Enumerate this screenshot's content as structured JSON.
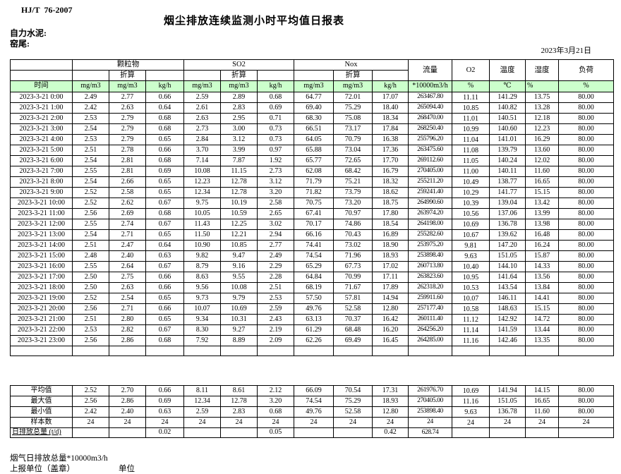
{
  "meta": {
    "standard": "HJ/T  76-2007",
    "title": "烟尘排放连续监测小时平均值日报表",
    "company": "自力水泥:",
    "location": "窑尾:",
    "date": "2023年3月21日"
  },
  "table": {
    "time_label": "时间",
    "converted_label": "折算",
    "groups": {
      "pm": "颗粒物",
      "so2": "SO2",
      "nox": "Nox",
      "flow": "流量",
      "o2": "O2",
      "temp": "温度",
      "humidity": "湿度",
      "load": "负荷"
    },
    "units": [
      "mg/m3",
      "mg/m3",
      "kg/h",
      "mg/m3",
      "mg/m3",
      "kg/h",
      "mg/m3",
      "mg/m3",
      "kg/h",
      "*10000m3/h",
      "%",
      "℃",
      "%",
      "%"
    ],
    "rows": [
      {
        "time": "2023-3-21 0:00",
        "values": [
          "2.49",
          "2.77",
          "0.66",
          "2.59",
          "2.89",
          "0.68",
          "64.77",
          "72.01",
          "17.07",
          "263467.80",
          "11.11",
          "141.29",
          "13.75",
          "80.00"
        ]
      },
      {
        "time": "2023-3-21 1:00",
        "values": [
          "2.42",
          "2.63",
          "0.64",
          "2.61",
          "2.83",
          "0.69",
          "69.40",
          "75.29",
          "18.40",
          "265094.40",
          "10.85",
          "140.82",
          "13.28",
          "80.00"
        ]
      },
      {
        "time": "2023-3-21 2:00",
        "values": [
          "2.53",
          "2.79",
          "0.68",
          "2.63",
          "2.95",
          "0.71",
          "68.30",
          "75.08",
          "18.34",
          "268470.00",
          "11.01",
          "140.51",
          "12.18",
          "80.00"
        ]
      },
      {
        "time": "2023-3-21 3:00",
        "values": [
          "2.54",
          "2.79",
          "0.68",
          "2.73",
          "3.00",
          "0.73",
          "66.51",
          "73.17",
          "17.84",
          "268250.40",
          "10.99",
          "140.60",
          "12.23",
          "80.00"
        ]
      },
      {
        "time": "2023-3-21 4:00",
        "values": [
          "2.53",
          "2.79",
          "0.65",
          "2.84",
          "3.12",
          "0.73",
          "64.05",
          "70.79",
          "16.38",
          "255796.20",
          "11.04",
          "141.01",
          "16.29",
          "80.00"
        ]
      },
      {
        "time": "2023-3-21 5:00",
        "values": [
          "2.51",
          "2.78",
          "0.66",
          "3.70",
          "3.99",
          "0.97",
          "65.88",
          "73.04",
          "17.36",
          "263475.60",
          "11.08",
          "139.79",
          "13.60",
          "80.00"
        ]
      },
      {
        "time": "2023-3-21 6:00",
        "values": [
          "2.54",
          "2.81",
          "0.68",
          "7.14",
          "7.87",
          "1.92",
          "65.77",
          "72.65",
          "17.70",
          "269112.60",
          "11.05",
          "140.24",
          "12.02",
          "80.00"
        ]
      },
      {
        "time": "2023-3-21 7:00",
        "values": [
          "2.55",
          "2.81",
          "0.69",
          "10.08",
          "11.15",
          "2.73",
          "62.08",
          "68.42",
          "16.79",
          "270405.00",
          "11.00",
          "140.11",
          "11.60",
          "80.00"
        ]
      },
      {
        "time": "2023-3-21 8:00",
        "values": [
          "2.54",
          "2.66",
          "0.65",
          "12.23",
          "12.78",
          "3.12",
          "71.79",
          "75.21",
          "18.32",
          "255211.20",
          "10.49",
          "138.77",
          "16.65",
          "80.00"
        ]
      },
      {
        "time": "2023-3-21 9:00",
        "values": [
          "2.52",
          "2.58",
          "0.65",
          "12.34",
          "12.78",
          "3.20",
          "71.82",
          "73.79",
          "18.62",
          "259241.40",
          "10.29",
          "141.77",
          "15.15",
          "80.00"
        ]
      },
      {
        "time": "2023-3-21 10:00",
        "values": [
          "2.52",
          "2.62",
          "0.67",
          "9.75",
          "10.19",
          "2.58",
          "70.75",
          "73.20",
          "18.75",
          "264990.60",
          "10.39",
          "139.04",
          "13.42",
          "80.00"
        ]
      },
      {
        "time": "2023-3-21 11:00",
        "values": [
          "2.56",
          "2.69",
          "0.68",
          "10.05",
          "10.59",
          "2.65",
          "67.41",
          "70.97",
          "17.80",
          "263974.20",
          "10.56",
          "137.06",
          "13.99",
          "80.00"
        ]
      },
      {
        "time": "2023-3-21 12:00",
        "values": [
          "2.55",
          "2.74",
          "0.67",
          "11.43",
          "12.25",
          "3.02",
          "70.17",
          "74.86",
          "18.54",
          "264198.00",
          "10.69",
          "136.78",
          "13.98",
          "80.00"
        ]
      },
      {
        "time": "2023-3-21 13:00",
        "values": [
          "2.54",
          "2.71",
          "0.65",
          "11.50",
          "12.21",
          "2.94",
          "66.16",
          "70.43",
          "16.89",
          "255282.60",
          "10.67",
          "139.62",
          "16.48",
          "80.00"
        ]
      },
      {
        "time": "2023-3-21 14:00",
        "values": [
          "2.51",
          "2.47",
          "0.64",
          "10.90",
          "10.85",
          "2.77",
          "74.41",
          "73.02",
          "18.90",
          "253975.20",
          "9.81",
          "147.20",
          "16.24",
          "80.00"
        ]
      },
      {
        "time": "2023-3-21 15:00",
        "values": [
          "2.48",
          "2.40",
          "0.63",
          "9.82",
          "9.47",
          "2.49",
          "74.54",
          "71.96",
          "18.93",
          "253898.40",
          "9.63",
          "151.05",
          "15.87",
          "80.00"
        ]
      },
      {
        "time": "2023-3-21 16:00",
        "values": [
          "2.55",
          "2.64",
          "0.67",
          "8.79",
          "9.16",
          "2.29",
          "65.29",
          "67.73",
          "17.02",
          "260713.80",
          "10.40",
          "144.10",
          "14.33",
          "80.00"
        ]
      },
      {
        "time": "2023-3-21 17:00",
        "values": [
          "2.50",
          "2.75",
          "0.66",
          "8.63",
          "9.55",
          "2.28",
          "64.84",
          "70.99",
          "17.11",
          "263823.60",
          "10.95",
          "141.64",
          "13.56",
          "80.00"
        ]
      },
      {
        "time": "2023-3-21 18:00",
        "values": [
          "2.50",
          "2.63",
          "0.66",
          "9.56",
          "10.08",
          "2.51",
          "68.19",
          "71.67",
          "17.89",
          "262318.20",
          "10.53",
          "143.54",
          "13.84",
          "80.00"
        ]
      },
      {
        "time": "2023-3-21 19:00",
        "values": [
          "2.52",
          "2.54",
          "0.65",
          "9.73",
          "9.79",
          "2.53",
          "57.50",
          "57.81",
          "14.94",
          "259911.60",
          "10.07",
          "146.11",
          "14.41",
          "80.00"
        ]
      },
      {
        "time": "2023-3-21 20:00",
        "values": [
          "2.56",
          "2.71",
          "0.66",
          "10.07",
          "10.69",
          "2.59",
          "49.76",
          "52.58",
          "12.80",
          "257177.40",
          "10.58",
          "148.63",
          "15.15",
          "80.00"
        ]
      },
      {
        "time": "2023-3-21 21:00",
        "values": [
          "2.51",
          "2.80",
          "0.65",
          "9.34",
          "10.31",
          "2.43",
          "63.13",
          "70.37",
          "16.42",
          "260111.40",
          "11.12",
          "142.92",
          "14.72",
          "80.00"
        ]
      },
      {
        "time": "2023-3-21 22:00",
        "values": [
          "2.53",
          "2.82",
          "0.67",
          "8.30",
          "9.27",
          "2.19",
          "61.29",
          "68.48",
          "16.20",
          "264256.20",
          "11.14",
          "141.59",
          "13.44",
          "80.00"
        ]
      },
      {
        "time": "2023-3-21 23:00",
        "values": [
          "2.56",
          "2.86",
          "0.68",
          "7.92",
          "8.89",
          "2.09",
          "62.26",
          "69.49",
          "16.45",
          "264285.00",
          "11.16",
          "142.46",
          "13.35",
          "80.00"
        ]
      }
    ],
    "summary": [
      {
        "label": "平均值",
        "values": [
          "2.52",
          "2.70",
          "0.66",
          "8.11",
          "8.61",
          "2.12",
          "66.09",
          "70.54",
          "17.31",
          "261976.70",
          "10.69",
          "141.94",
          "14.15",
          "80.00"
        ]
      },
      {
        "label": "最大值",
        "values": [
          "2.56",
          "2.86",
          "0.69",
          "12.34",
          "12.78",
          "3.20",
          "74.54",
          "75.29",
          "18.93",
          "270405.00",
          "11.16",
          "151.05",
          "16.65",
          "80.00"
        ]
      },
      {
        "label": "最小值",
        "values": [
          "2.42",
          "2.40",
          "0.63",
          "2.59",
          "2.83",
          "0.68",
          "49.76",
          "52.58",
          "12.80",
          "253898.40",
          "9.63",
          "136.78",
          "11.60",
          "80.00"
        ]
      },
      {
        "label": "样本数",
        "values": [
          "24",
          "24",
          "24",
          "24",
          "24",
          "24",
          "24",
          "24",
          "24",
          "24",
          "24",
          "24",
          "24",
          "24"
        ]
      },
      {
        "label": "日排放总量 (t/d)",
        "values": [
          "",
          "",
          "0.02",
          "",
          "",
          "0.05",
          "",
          "",
          "0.42",
          "628.74",
          "",
          "",
          "",
          ""
        ]
      }
    ]
  },
  "footer": {
    "note": "烟气日排放总量*10000m3/h",
    "report_unit": "上报单位（盖章）",
    "unit_word": "单位"
  }
}
